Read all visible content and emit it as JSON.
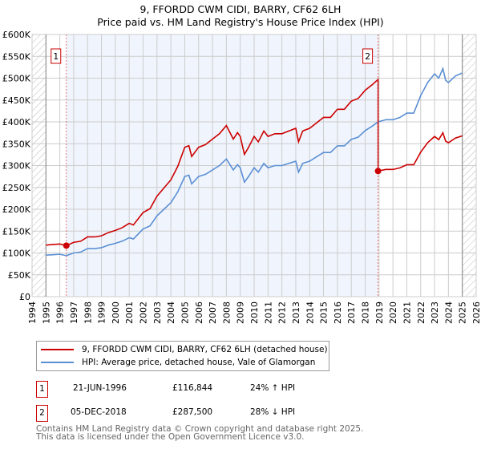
{
  "chart_data": {
    "type": "line",
    "title": "9, FFORDD CWM CIDI, BARRY, CF62 6LH",
    "subtitle": "Price paid vs. HM Land Registry's House Price Index (HPI)",
    "xlim": [
      1994,
      2026
    ],
    "ylim": [
      0,
      600000
    ],
    "x_ticks": [
      "1994",
      "1995",
      "1996",
      "1997",
      "1998",
      "1999",
      "2000",
      "2001",
      "2002",
      "2003",
      "2004",
      "2005",
      "2006",
      "2007",
      "2008",
      "2009",
      "2010",
      "2011",
      "2012",
      "2013",
      "2014",
      "2015",
      "2016",
      "2017",
      "2018",
      "2019",
      "2020",
      "2021",
      "2022",
      "2023",
      "2024",
      "2025",
      "2026"
    ],
    "y_ticks": [
      "£0",
      "£50K",
      "£100K",
      "£150K",
      "£200K",
      "£250K",
      "£300K",
      "£350K",
      "£400K",
      "£450K",
      "£500K",
      "£550K",
      "£600K"
    ],
    "grid": true,
    "series": [
      {
        "name": "9, FFORDD CWM CIDI, BARRY, CF62 6LH (detached house)",
        "color": "#cc0000",
        "derived_from_hpi_by_sale_ratio": true
      },
      {
        "name": "HPI: Average price, detached house, Vale of Glamorgan",
        "color": "#5b8fd4",
        "x": [
          1995,
          1995.5,
          1996,
          1996.47,
          1997,
          1997.5,
          1998,
          1998.5,
          1999,
          1999.5,
          2000,
          2000.5,
          2001,
          2001.3,
          2002,
          2002.5,
          2003,
          2003.5,
          2004,
          2004.5,
          2005,
          2005.3,
          2005.5,
          2006,
          2006.5,
          2007,
          2007.5,
          2008,
          2008.5,
          2008.8,
          2009,
          2009.3,
          2009.6,
          2010,
          2010.3,
          2010.7,
          2011,
          2011.5,
          2012,
          2012.5,
          2013,
          2013.2,
          2013.5,
          2014,
          2014.5,
          2015,
          2015.5,
          2016,
          2016.5,
          2017,
          2017.5,
          2018,
          2018.5,
          2018.93,
          2019.5,
          2020,
          2020.5,
          2021,
          2021.5,
          2022,
          2022.5,
          2023,
          2023.3,
          2023.6,
          2023.8,
          2024,
          2024.5,
          2025
        ],
        "y": [
          95000,
          96000,
          97000,
          94000,
          100000,
          102000,
          110000,
          110000,
          112000,
          118000,
          122000,
          127000,
          135000,
          132000,
          155000,
          162000,
          185000,
          200000,
          215000,
          240000,
          275000,
          278000,
          258000,
          275000,
          280000,
          290000,
          300000,
          315000,
          290000,
          302000,
          295000,
          262000,
          275000,
          295000,
          285000,
          305000,
          295000,
          300000,
          300000,
          305000,
          310000,
          285000,
          305000,
          310000,
          320000,
          330000,
          330000,
          345000,
          345000,
          360000,
          365000,
          380000,
          390000,
          400000,
          405000,
          405000,
          410000,
          420000,
          420000,
          460000,
          490000,
          510000,
          500000,
          522000,
          495000,
          490000,
          505000,
          512000
        ]
      }
    ],
    "sales": [
      {
        "label": "1",
        "x": 1996.47,
        "date": "21-JUN-1996",
        "price": "£116,844",
        "value": 116844,
        "hpi_delta": "24% ↑ HPI"
      },
      {
        "label": "2",
        "x": 2018.93,
        "date": "05-DEC-2018",
        "price": "£287,500",
        "value": 287500,
        "hpi_delta": "28% ↓ HPI"
      }
    ]
  },
  "legend": {
    "property": "9, FFORDD CWM CIDI, BARRY, CF62 6LH (detached house)",
    "hpi": "HPI: Average price, detached house, Vale of Glamorgan"
  },
  "footer": {
    "line1": "Contains HM Land Registry data © Crown copyright and database right 2025.",
    "line2": "This data is licensed under the Open Government Licence v3.0."
  }
}
